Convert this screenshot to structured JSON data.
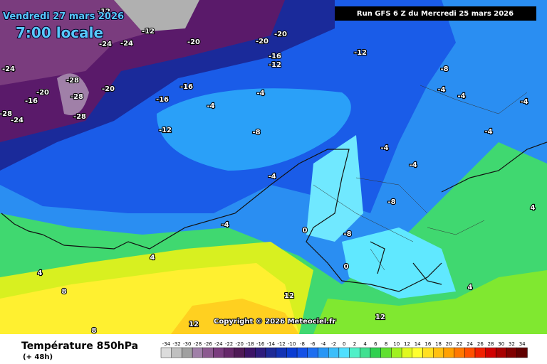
{
  "header": {
    "date": "Vendredi 27 mars 2026",
    "time": "7:00 locale",
    "run": "Run GFS 6 Z du Mercredi 25 mars 2026"
  },
  "footer": {
    "title": "Température 850hPa",
    "lead": "(+ 48h)",
    "copyright": "Copyright © 2026 Meteociel.fr"
  },
  "legend": {
    "ticks": [
      -34,
      -32,
      -30,
      -28,
      -26,
      -24,
      -22,
      -20,
      -18,
      -16,
      -14,
      -12,
      -10,
      -8,
      -6,
      -4,
      -2,
      0,
      2,
      4,
      6,
      8,
      10,
      12,
      14,
      16,
      18,
      20,
      22,
      24,
      26,
      28,
      30,
      32,
      34
    ],
    "colors": [
      "#dcdcdc",
      "#c0c0c0",
      "#a0a0a0",
      "#a080a8",
      "#8c5a90",
      "#7a3c7e",
      "#66286a",
      "#4f1a56",
      "#3c1466",
      "#2e1c7c",
      "#1e2a96",
      "#1232b4",
      "#0a3cd2",
      "#1450e6",
      "#1e6ef0",
      "#2896f5",
      "#3cbefa",
      "#50e0ff",
      "#50f0c8",
      "#40e090",
      "#30d050",
      "#60e030",
      "#a0f020",
      "#e0f820",
      "#ffff30",
      "#ffe020",
      "#ffc010",
      "#ffa000",
      "#ff7800",
      "#ff5000",
      "#f02000",
      "#d00000",
      "#a80000",
      "#800000",
      "#600000"
    ]
  },
  "map": {
    "labels": [
      -24,
      -24,
      -20,
      -20,
      -20,
      -24,
      -20,
      -16,
      -28,
      -28,
      -28,
      -24,
      -28,
      -20,
      -16,
      -16,
      -16,
      -12,
      -12,
      -12,
      -8,
      -4,
      -4,
      -8,
      -4,
      -4,
      -4,
      -4,
      -4,
      -4,
      -4,
      -8,
      -8,
      -4,
      0,
      4,
      4,
      8,
      8,
      12,
      12,
      12,
      4,
      4,
      0,
      -12,
      -12
    ]
  }
}
